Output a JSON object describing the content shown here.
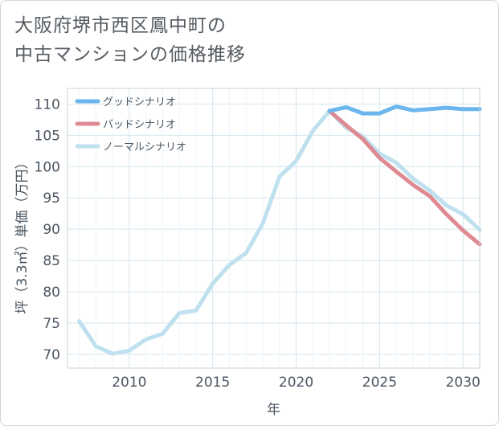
{
  "title": {
    "line1": "大阪府堺市西区鳳中町の",
    "line2": "中古マンションの価格推移"
  },
  "chart_data": {
    "type": "line",
    "xlabel": "年",
    "ylabel": "坪（3.3㎡）単価（万円）",
    "xlim": [
      2006.3,
      2031
    ],
    "ylim": [
      67.8,
      112.5
    ],
    "xticks": [
      2010,
      2015,
      2020,
      2025,
      2030
    ],
    "yticks": [
      70,
      75,
      80,
      85,
      90,
      95,
      100,
      105,
      110
    ],
    "grid": true,
    "legend_position": "top-left",
    "series": [
      {
        "name": "グッドシナリオ",
        "color": "#6bb6ec",
        "x": [
          2022,
          2023,
          2024,
          2025,
          2026,
          2027,
          2028,
          2029,
          2030,
          2031
        ],
        "y": [
          108.9,
          109.5,
          108.5,
          108.5,
          109.6,
          109.0,
          109.2,
          109.4,
          109.2,
          109.2
        ]
      },
      {
        "name": "バッドシナリオ",
        "color": "#de8a93",
        "x": [
          2022,
          2023,
          2024,
          2025,
          2026,
          2027,
          2028,
          2029,
          2030,
          2031
        ],
        "y": [
          108.9,
          106.6,
          104.4,
          101.4,
          99.2,
          97.1,
          95.3,
          92.4,
          89.8,
          87.6
        ]
      },
      {
        "name": "ノーマルシナリオ",
        "color": "#bfe0ee",
        "x": [
          2007,
          2008,
          2009,
          2010,
          2011,
          2012,
          2013,
          2014,
          2015,
          2016,
          2017,
          2018,
          2019,
          2020,
          2021,
          2022,
          2023,
          2024,
          2025,
          2026,
          2027,
          2028,
          2029,
          2030,
          2031
        ],
        "y": [
          75.3,
          71.3,
          70.1,
          70.6,
          72.4,
          73.3,
          76.6,
          77.0,
          81.3,
          84.3,
          86.2,
          90.9,
          98.4,
          100.9,
          105.7,
          108.9,
          106.2,
          104.8,
          102.1,
          100.6,
          98.1,
          96.2,
          93.8,
          92.4,
          89.9
        ]
      }
    ]
  }
}
